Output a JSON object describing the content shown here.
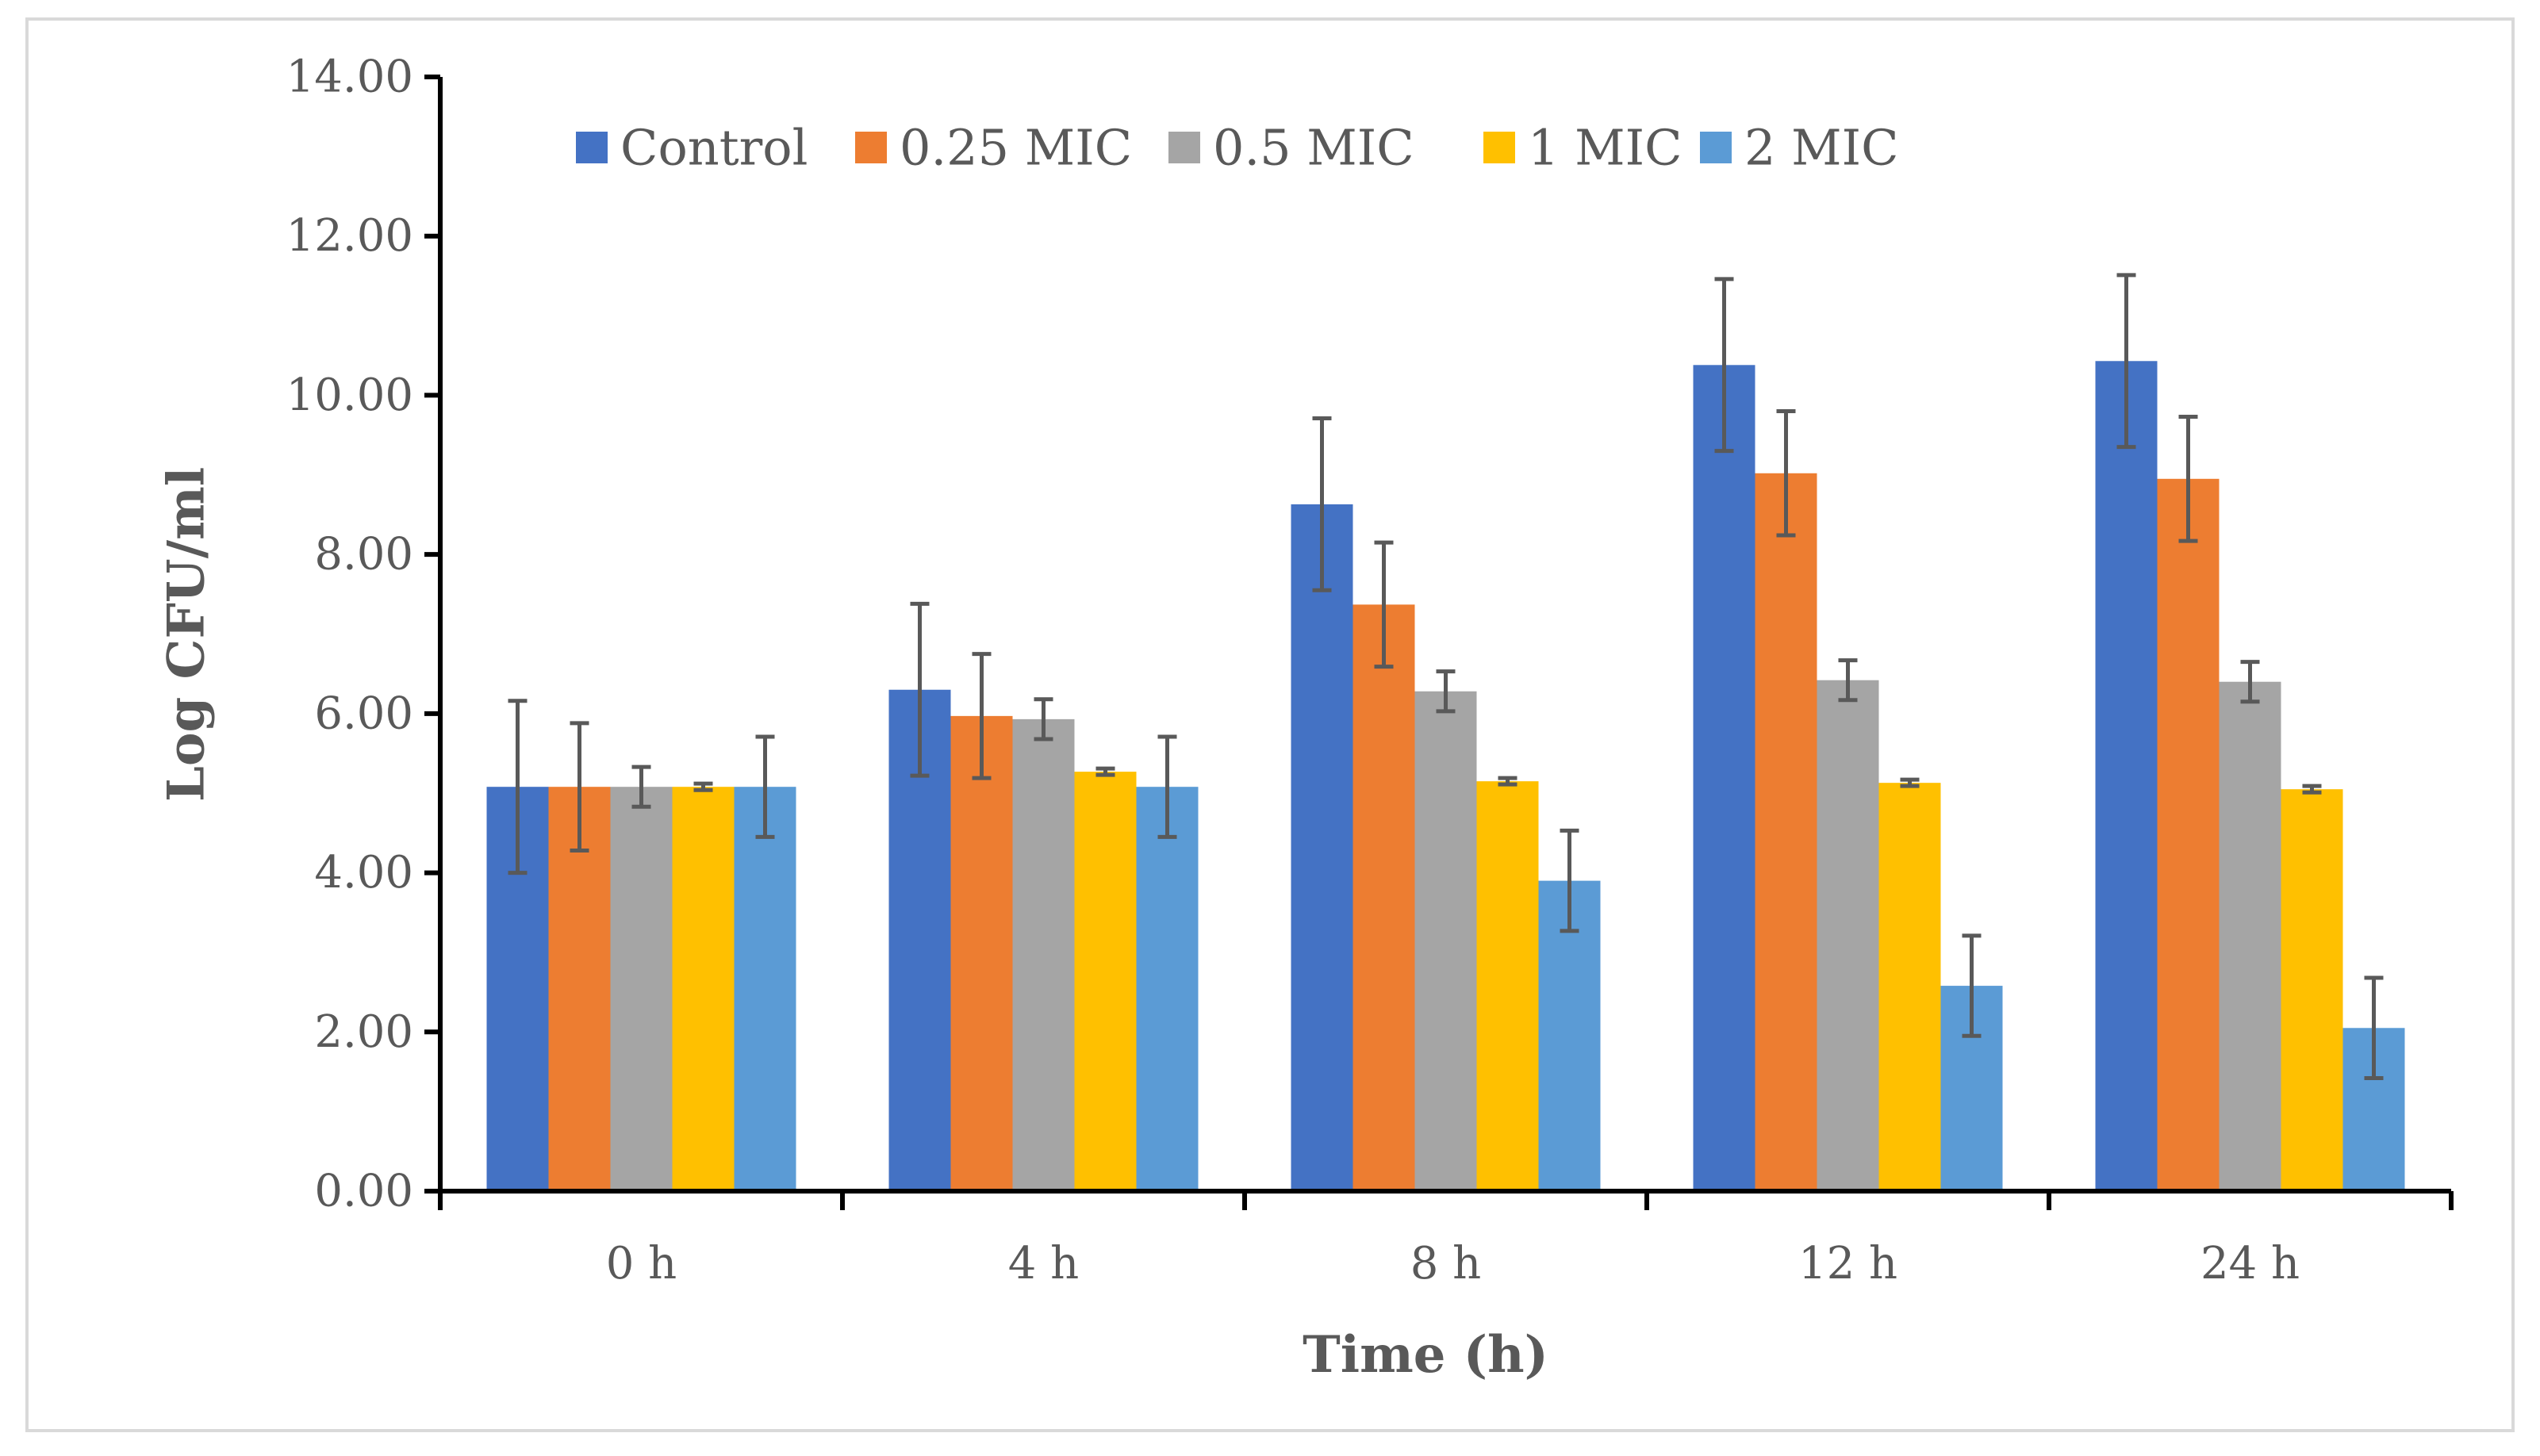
{
  "chart_data": {
    "type": "bar",
    "title": "",
    "xlabel": "Time (h)",
    "ylabel": "Log CFU/ml",
    "ylim": [
      0,
      14
    ],
    "ytick_step": 2,
    "ytick_labels": [
      "0.00",
      "2.00",
      "4.00",
      "6.00",
      "8.00",
      "10.00",
      "12.00",
      "14.00"
    ],
    "grid": false,
    "legend_position": "top",
    "categories": [
      "0 h",
      "4 h",
      "8 h",
      "12 h",
      "24 h"
    ],
    "series": [
      {
        "name": "Control",
        "color": "#4472C4",
        "values": [
          5.08,
          6.3,
          8.63,
          10.38,
          10.43
        ],
        "errors": [
          1.08,
          1.08,
          1.08,
          1.08,
          1.08
        ]
      },
      {
        "name": "0.25 MIC",
        "color": "#ED7D31",
        "values": [
          5.08,
          5.97,
          7.37,
          9.02,
          8.95
        ],
        "errors": [
          0.8,
          0.78,
          0.78,
          0.78,
          0.78
        ]
      },
      {
        "name": "0.5 MIC",
        "color": "#A5A5A5",
        "values": [
          5.08,
          5.93,
          6.28,
          6.42,
          6.4
        ],
        "errors": [
          0.25,
          0.25,
          0.25,
          0.25,
          0.25
        ]
      },
      {
        "name": "1 MIC",
        "color": "#FFC000",
        "values": [
          5.08,
          5.27,
          5.15,
          5.13,
          5.05
        ],
        "errors": [
          0.04,
          0.04,
          0.04,
          0.04,
          0.04
        ]
      },
      {
        "name": "2 MIC",
        "color": "#5B9BD5",
        "values": [
          5.08,
          5.08,
          3.9,
          2.58,
          2.05
        ],
        "errors": [
          0.63,
          0.63,
          0.63,
          0.63,
          0.63
        ]
      }
    ]
  }
}
